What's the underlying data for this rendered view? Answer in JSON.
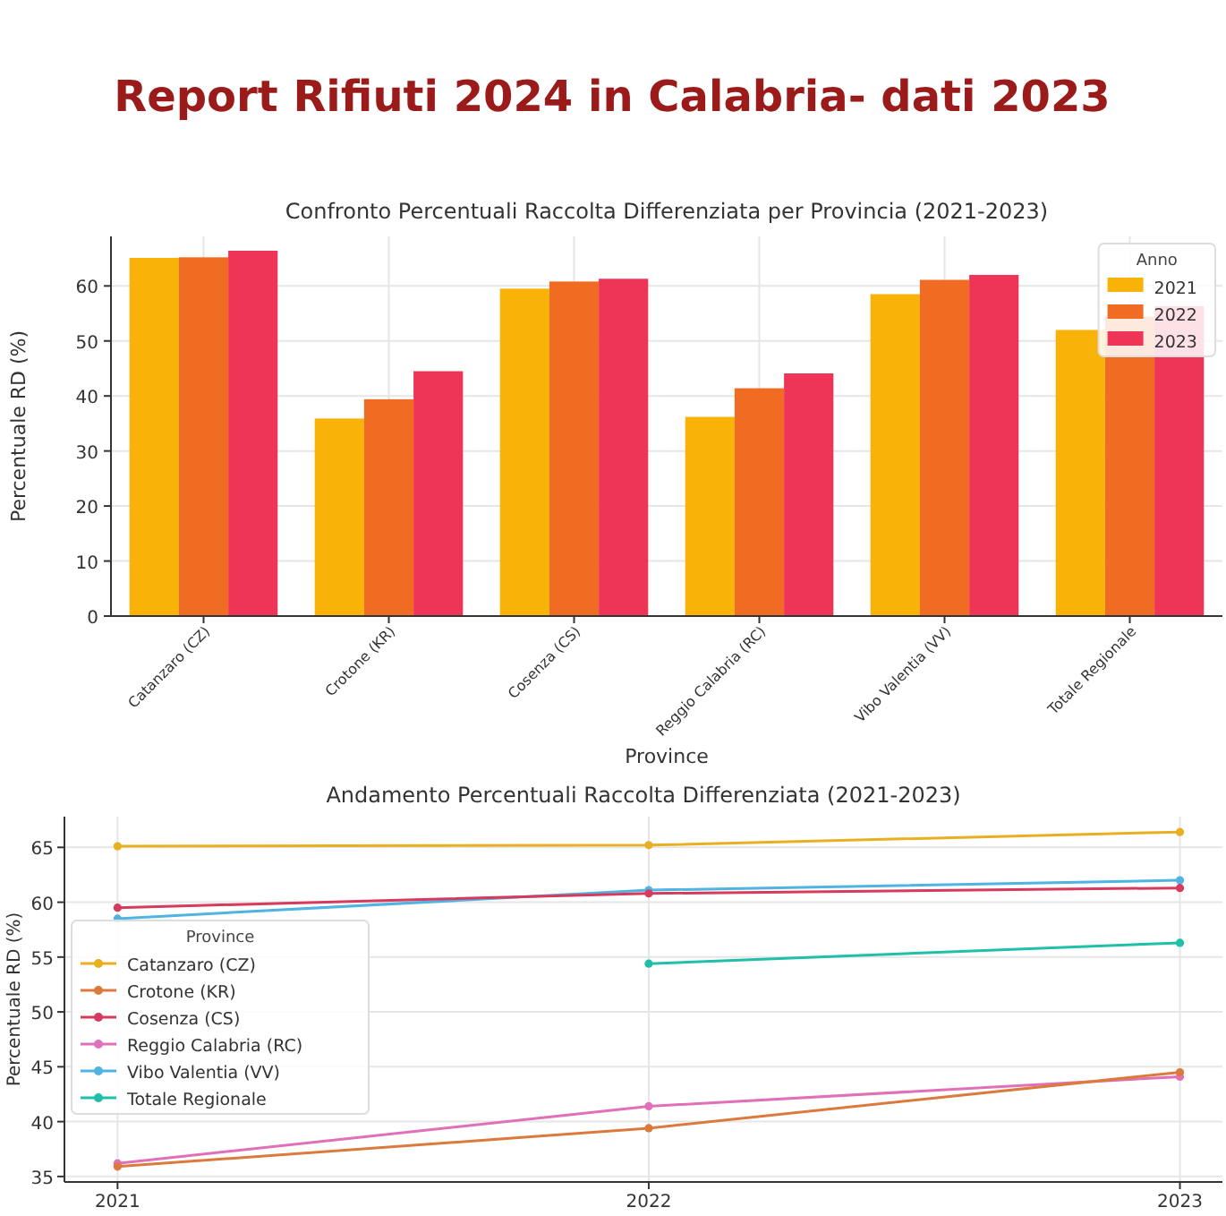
{
  "chart_data": [
    {
      "type": "bar",
      "title": "Report Rifiuti 2024 in Calabria- dati 2023",
      "subtitle": "Confronto Percentuali Raccolta Differenziata per Provincia (2021-2023)",
      "xlabel": "Province",
      "ylabel": "Percentuale RD (%)",
      "legend_title": "Anno",
      "categories": [
        "Catanzaro (CZ)",
        "Crotone (KR)",
        "Cosenza (CS)",
        "Reggio Calabria (RC)",
        "Vibo Valentia (VV)",
        "Totale Regionale"
      ],
      "series": [
        {
          "name": "2021",
          "color": "#f9b208",
          "values": [
            65.1,
            35.9,
            59.5,
            36.2,
            58.5,
            52.0
          ]
        },
        {
          "name": "2022",
          "color": "#ef6c22",
          "values": [
            65.2,
            39.4,
            60.8,
            41.4,
            61.1,
            54.4
          ]
        },
        {
          "name": "2023",
          "color": "#ee3557",
          "values": [
            66.4,
            44.5,
            61.3,
            44.1,
            62.0,
            56.3
          ]
        }
      ],
      "ylim": [
        0,
        69
      ],
      "yticks": [
        0,
        10,
        20,
        30,
        40,
        50,
        60
      ],
      "grid": true,
      "legend": "top right"
    },
    {
      "type": "line",
      "title": "Andamento Percentuali Raccolta Differenziata (2021-2023)",
      "ylabel": "Percentuale RD (%)",
      "legend_title": "Province",
      "x": [
        2021,
        2022,
        2023
      ],
      "series": [
        {
          "name": "Catanzaro (CZ)",
          "color": "#e8b021",
          "values": [
            65.1,
            65.2,
            66.4
          ]
        },
        {
          "name": "Crotone (KR)",
          "color": "#dc7a3c",
          "values": [
            35.9,
            39.4,
            44.5
          ]
        },
        {
          "name": "Cosenza (CS)",
          "color": "#d63a5c",
          "values": [
            59.5,
            60.8,
            61.3
          ]
        },
        {
          "name": "Reggio Calabria (RC)",
          "color": "#e070b8",
          "values": [
            36.2,
            41.4,
            44.1
          ]
        },
        {
          "name": "Vibo Valentia (VV)",
          "color": "#4fb4e2",
          "values": [
            58.5,
            61.1,
            62.0
          ]
        },
        {
          "name": "Totale Regionale",
          "color": "#1fbfa8",
          "values": [
            null,
            54.4,
            56.3
          ]
        }
      ],
      "xlim": [
        2020.9,
        2023.08
      ],
      "xticks": [
        2021,
        2022,
        2023
      ],
      "ylim": [
        34.5,
        67.8
      ],
      "yticks": [
        35,
        40,
        45,
        50,
        55,
        60,
        65
      ],
      "grid": true,
      "legend": "left",
      "marker": "circle",
      "line_style": "solid"
    }
  ]
}
